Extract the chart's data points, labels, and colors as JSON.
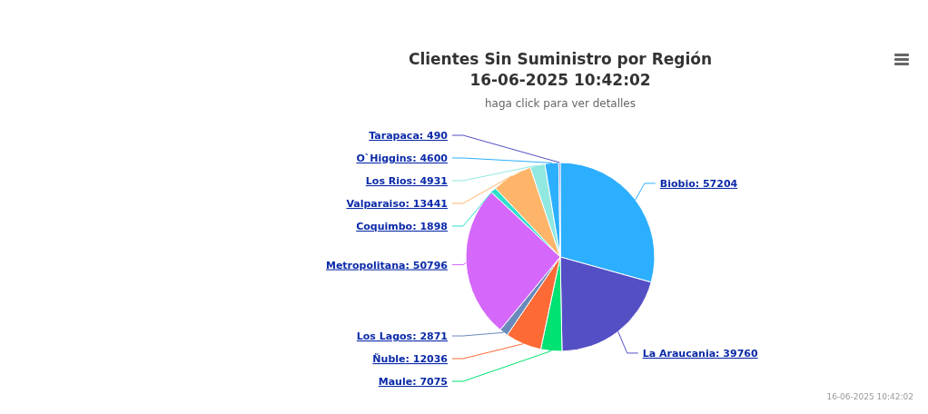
{
  "chart_data": {
    "type": "pie",
    "title": "Clientes Sin Suministro por Región\n16-06-2025 10:42:02",
    "subtitle": "haga click para ver detalles",
    "categories": [
      "Biobio",
      "La Araucania",
      "Maule",
      "Ñuble",
      "Los Lagos",
      "Metropolitana",
      "Coquimbo",
      "Valparaiso",
      "Los Rios",
      "O`Higgins",
      "Tarapaca"
    ],
    "values": [
      57204,
      39760,
      7075,
      12036,
      2871,
      50796,
      1898,
      13441,
      4931,
      4600,
      490
    ],
    "colors": [
      "#2caffe",
      "#544fc5",
      "#00e272",
      "#fe6a35",
      "#6b8abc",
      "#d568fb",
      "#2ee0ca",
      "#feb56a",
      "#91e8e1",
      "#2caffe",
      "#544fc5"
    ],
    "value_labels": [
      ": 57204",
      ": 39760",
      ": 7075",
      ": 12036",
      ": 2871",
      ": 50796",
      ": 1898",
      ": 13441",
      ": 4931",
      ": 4600",
      ": 490"
    ],
    "legend": false,
    "annotations": [
      "16-06-2025 10:42:02"
    ]
  }
}
